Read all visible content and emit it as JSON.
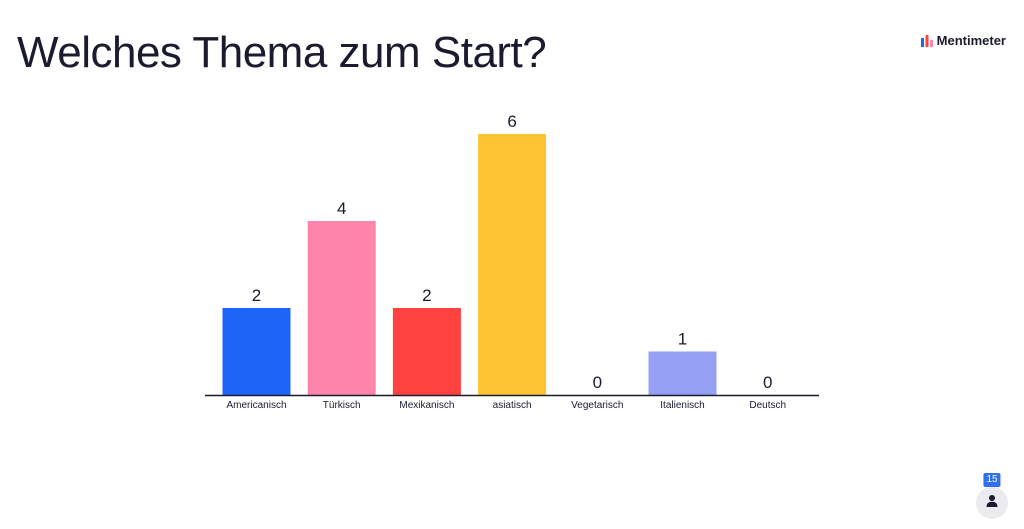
{
  "title": "Welches Thema zum Start?",
  "brand": {
    "name": "Mentimeter",
    "icon": "mentimeter-logo-icon"
  },
  "participants": {
    "count": "15",
    "icon": "person-icon"
  },
  "chart_data": {
    "type": "bar",
    "title": "Welches Thema zum Start?",
    "categories": [
      "Americanisch",
      "Türkisch",
      "Mexikanisch",
      "asiatisch",
      "Vegetarisch",
      "Italienisch",
      "Deutsch"
    ],
    "values": [
      2,
      4,
      2,
      6,
      0,
      1,
      0
    ],
    "colors": [
      "#1e64f9",
      "#ff85ab",
      "#ff4240",
      "#ffc433",
      "#c9c9d6",
      "#959ff4",
      "#c9c9d6"
    ],
    "ylim": [
      0,
      6
    ],
    "grid": false,
    "legend": "none",
    "xlabel": "",
    "ylabel": ""
  }
}
